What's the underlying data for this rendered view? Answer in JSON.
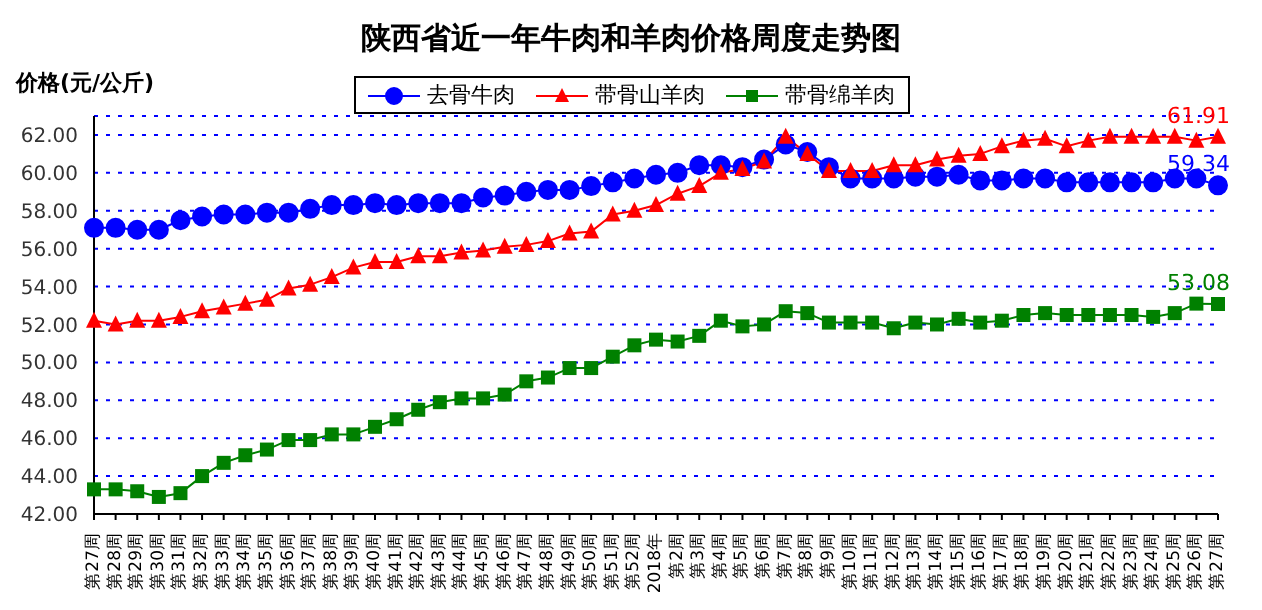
{
  "chart_data": {
    "type": "line",
    "title": "陕西省近一年牛肉和羊肉价格周度走势图",
    "ylabel": "价格(元/公斤)",
    "categories": [
      "第27周",
      "第28周",
      "第29周",
      "第30周",
      "第31周",
      "第32周",
      "第33周",
      "第34周",
      "第35周",
      "第36周",
      "第37周",
      "第38周",
      "第39周",
      "第40周",
      "第41周",
      "第42周",
      "第43周",
      "第44周",
      "第45周",
      "第46周",
      "第47周",
      "第48周",
      "第49周",
      "第50周",
      "第51周",
      "第52周",
      "2018年",
      "第2周",
      "第3周",
      "第4周",
      "第5周",
      "第6周",
      "第7周",
      "第8周",
      "第9周",
      "第10周",
      "第11周",
      "第12周",
      "第13周",
      "第14周",
      "第15周",
      "第16周",
      "第17周",
      "第18周",
      "第19周",
      "第20周",
      "第21周",
      "第22周",
      "第23周",
      "第24周",
      "第25周",
      "第26周",
      "第27周"
    ],
    "series": [
      {
        "name": "去骨牛肉",
        "color": "#0000ff",
        "marker": "circle",
        "values": [
          57.1,
          57.1,
          57.0,
          57.0,
          57.5,
          57.7,
          57.8,
          57.8,
          57.9,
          57.9,
          58.1,
          58.3,
          58.3,
          58.4,
          58.3,
          58.4,
          58.4,
          58.4,
          58.7,
          58.8,
          59.0,
          59.1,
          59.1,
          59.3,
          59.5,
          59.7,
          59.9,
          60.0,
          60.4,
          60.4,
          60.3,
          60.7,
          61.5,
          61.1,
          60.3,
          59.7,
          59.7,
          59.7,
          59.8,
          59.8,
          59.9,
          59.6,
          59.6,
          59.7,
          59.7,
          59.5,
          59.5,
          59.5,
          59.5,
          59.5,
          59.7,
          59.7,
          59.34
        ],
        "value_labels": [
          null,
          null,
          null,
          null,
          null,
          null,
          null,
          null,
          null,
          null,
          null,
          null,
          null,
          null,
          null,
          null,
          null,
          null,
          null,
          null,
          null,
          null,
          null,
          null,
          null,
          null,
          null,
          null,
          null,
          null,
          null,
          null,
          null,
          null,
          null,
          null,
          null,
          null,
          null,
          null,
          null,
          null,
          null,
          null,
          null,
          null,
          null,
          null,
          null,
          null,
          null,
          null,
          "59.34"
        ]
      },
      {
        "name": "带骨山羊肉",
        "color": "#ff0000",
        "marker": "triangle",
        "values": [
          52.2,
          52.0,
          52.2,
          52.2,
          52.4,
          52.7,
          52.9,
          53.1,
          53.3,
          53.9,
          54.1,
          54.5,
          55.0,
          55.3,
          55.3,
          55.6,
          55.6,
          55.8,
          55.9,
          56.1,
          56.2,
          56.4,
          56.8,
          56.9,
          57.8,
          58.0,
          58.3,
          58.9,
          59.3,
          60.0,
          60.2,
          60.6,
          61.9,
          61.0,
          60.1,
          60.1,
          60.1,
          60.4,
          60.4,
          60.7,
          60.9,
          61.0,
          61.4,
          61.7,
          61.8,
          61.4,
          61.7,
          61.9,
          61.9,
          61.9,
          61.9,
          61.7,
          61.91
        ],
        "value_labels": [
          null,
          null,
          null,
          null,
          null,
          null,
          null,
          null,
          null,
          null,
          null,
          null,
          null,
          null,
          null,
          null,
          null,
          null,
          null,
          null,
          null,
          null,
          null,
          null,
          null,
          null,
          null,
          null,
          null,
          null,
          null,
          null,
          null,
          null,
          null,
          null,
          null,
          null,
          null,
          null,
          null,
          null,
          null,
          null,
          null,
          null,
          null,
          null,
          null,
          null,
          null,
          null,
          "61.91"
        ]
      },
      {
        "name": "带骨绵羊肉",
        "color": "#008000",
        "marker": "square",
        "values": [
          43.3,
          43.3,
          43.2,
          42.9,
          43.1,
          44.0,
          44.7,
          45.1,
          45.4,
          45.9,
          45.9,
          46.2,
          46.2,
          46.6,
          47.0,
          47.5,
          47.9,
          48.1,
          48.1,
          48.3,
          49.0,
          49.2,
          49.7,
          49.7,
          50.3,
          50.9,
          51.2,
          51.1,
          51.4,
          52.2,
          51.9,
          52.0,
          52.7,
          52.6,
          52.1,
          52.1,
          52.1,
          51.8,
          52.1,
          52.0,
          52.3,
          52.1,
          52.2,
          52.5,
          52.6,
          52.5,
          52.5,
          52.5,
          52.5,
          52.4,
          52.6,
          53.1,
          53.08
        ],
        "value_labels": [
          null,
          null,
          null,
          null,
          null,
          null,
          null,
          null,
          null,
          null,
          null,
          null,
          null,
          null,
          null,
          null,
          null,
          null,
          null,
          null,
          null,
          null,
          null,
          null,
          null,
          null,
          null,
          null,
          null,
          null,
          null,
          null,
          null,
          null,
          null,
          null,
          null,
          null,
          null,
          null,
          null,
          null,
          null,
          null,
          null,
          null,
          null,
          null,
          null,
          null,
          null,
          null,
          "53.08"
        ]
      }
    ],
    "ylim": [
      42,
      63
    ],
    "yticks": [
      {
        "value": 42,
        "label": "42.00"
      },
      {
        "value": 44,
        "label": "44.00"
      },
      {
        "value": 46,
        "label": "46.00"
      },
      {
        "value": 48,
        "label": "48.00"
      },
      {
        "value": 50,
        "label": "50.00"
      },
      {
        "value": 52,
        "label": "52.00"
      },
      {
        "value": 54,
        "label": "54.00"
      },
      {
        "value": 56,
        "label": "56.00"
      },
      {
        "value": 58,
        "label": "58.00"
      },
      {
        "value": 60,
        "label": "60.00"
      },
      {
        "value": 62,
        "label": "62.00"
      }
    ],
    "grid": "y",
    "legend": "top"
  }
}
